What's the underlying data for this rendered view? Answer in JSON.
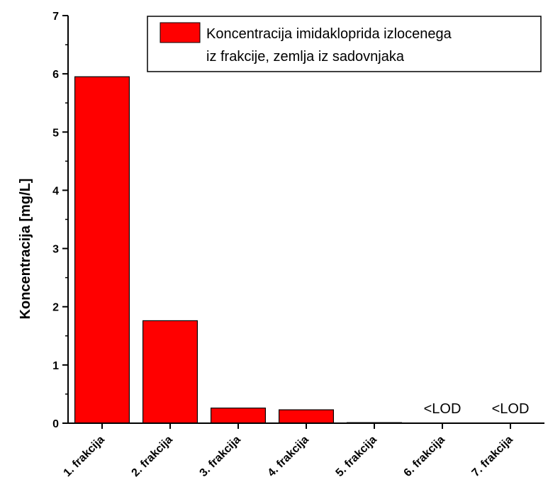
{
  "chart_data": {
    "type": "bar",
    "categories": [
      "1. frakcija",
      "2. frakcija",
      "3. frakcija",
      "4. frakcija",
      "5. frakcija",
      "6. frakcija",
      "7. frakcija"
    ],
    "series": [
      {
        "name": "Koncentracija imidakloprida izlocenega iz frakcije, zemlja iz sadovnjaka",
        "values": [
          5.95,
          1.76,
          0.26,
          0.23,
          0.01,
          0,
          0
        ],
        "color": "#ff0000"
      }
    ],
    "annotations": [
      "",
      "",
      "",
      "",
      "",
      "<LOD",
      "<LOD"
    ],
    "xlabel": "",
    "ylabel": "Koncentracija [mg/L]",
    "ylim": [
      0,
      7
    ],
    "yticks": [
      0,
      1,
      2,
      3,
      4,
      5,
      6,
      7
    ],
    "legend": {
      "placement": "top-right",
      "lines": [
        "Koncentracija imidakloprida izlocenega",
        "iz frakcije, zemlja iz sadovnjaka"
      ]
    },
    "grid": false
  }
}
